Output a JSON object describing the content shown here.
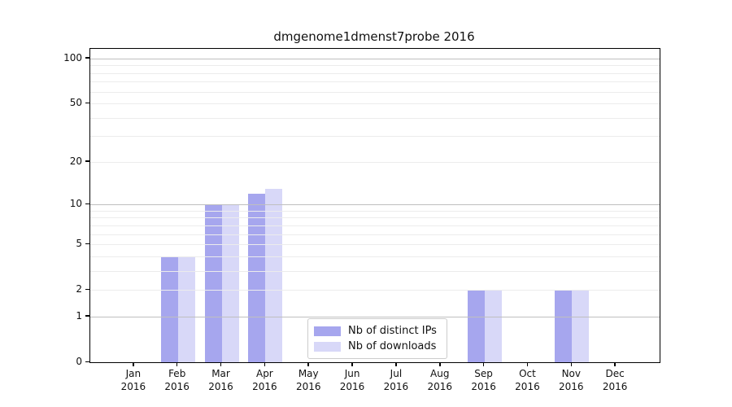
{
  "chart_data": {
    "type": "bar",
    "title": "dmgenome1dmenst7probe 2016",
    "categories": [
      "Jan 2016",
      "Feb 2016",
      "Mar 2016",
      "Apr 2016",
      "May 2016",
      "Jun 2016",
      "Jul 2016",
      "Aug 2016",
      "Sep 2016",
      "Oct 2016",
      "Nov 2016",
      "Dec 2016"
    ],
    "series": [
      {
        "name": "Nb of distinct IPs",
        "color": "#a6a6ee",
        "values": [
          0,
          4,
          10,
          12,
          0,
          0,
          0,
          0,
          2,
          0,
          2,
          0
        ]
      },
      {
        "name": "Nb of downloads",
        "color": "#d8d8f8",
        "values": [
          0,
          4,
          10,
          13,
          0,
          0,
          0,
          0,
          2,
          0,
          2,
          0
        ]
      }
    ],
    "yticks": [
      0,
      1,
      2,
      5,
      10,
      20,
      50,
      100
    ],
    "major_gridlines": [
      1,
      10,
      100
    ],
    "minor_gridlines": [
      2,
      3,
      4,
      5,
      6,
      7,
      8,
      9,
      20,
      30,
      40,
      50,
      60,
      70,
      80,
      90
    ],
    "yscale": "log1p",
    "ylim": [
      0,
      116
    ],
    "grid": true,
    "legend_position": "bottom-center"
  }
}
